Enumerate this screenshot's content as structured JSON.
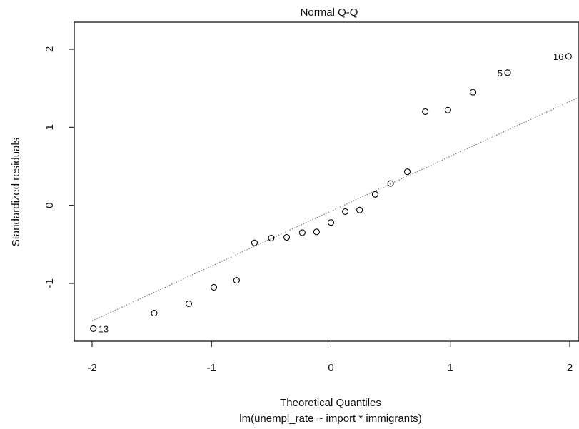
{
  "chart_data": {
    "type": "scatter",
    "title": "Normal Q-Q",
    "xlabel": "Theoretical Quantiles",
    "subtitle": "lm(unempl_rate ~ import * immigrants)",
    "ylabel": "Standardized residuals",
    "xlim": [
      -2.0,
      2.0
    ],
    "ylim": [
      -1.7,
      2.05
    ],
    "x_ticks": [
      -2,
      -1,
      0,
      1,
      2
    ],
    "x_tick_labels": [
      "-2",
      "-1",
      "0",
      "1",
      "2"
    ],
    "y_ticks": [
      -1,
      0,
      1,
      2
    ],
    "y_tick_labels": [
      "-1",
      "0",
      "1",
      "2"
    ],
    "grid": false,
    "points": [
      {
        "x": -1.99,
        "y": -1.58,
        "label": "13"
      },
      {
        "x": -1.48,
        "y": -1.38
      },
      {
        "x": -1.19,
        "y": -1.26
      },
      {
        "x": -0.98,
        "y": -1.05
      },
      {
        "x": -0.79,
        "y": -0.96
      },
      {
        "x": -0.64,
        "y": -0.48
      },
      {
        "x": -0.5,
        "y": -0.42
      },
      {
        "x": -0.37,
        "y": -0.41
      },
      {
        "x": -0.24,
        "y": -0.35
      },
      {
        "x": -0.12,
        "y": -0.34
      },
      {
        "x": 0.0,
        "y": -0.22
      },
      {
        "x": 0.12,
        "y": -0.08
      },
      {
        "x": 0.24,
        "y": -0.06
      },
      {
        "x": 0.37,
        "y": 0.14
      },
      {
        "x": 0.5,
        "y": 0.28
      },
      {
        "x": 0.64,
        "y": 0.43
      },
      {
        "x": 0.79,
        "y": 1.2
      },
      {
        "x": 0.98,
        "y": 1.22
      },
      {
        "x": 1.19,
        "y": 1.45
      },
      {
        "x": 1.48,
        "y": 1.7,
        "label": "5"
      },
      {
        "x": 1.99,
        "y": 1.91,
        "label": "16"
      }
    ],
    "reference_line": {
      "x1": -2.0,
      "y1": -1.48,
      "x2": 2.1,
      "y2": 1.4
    }
  }
}
